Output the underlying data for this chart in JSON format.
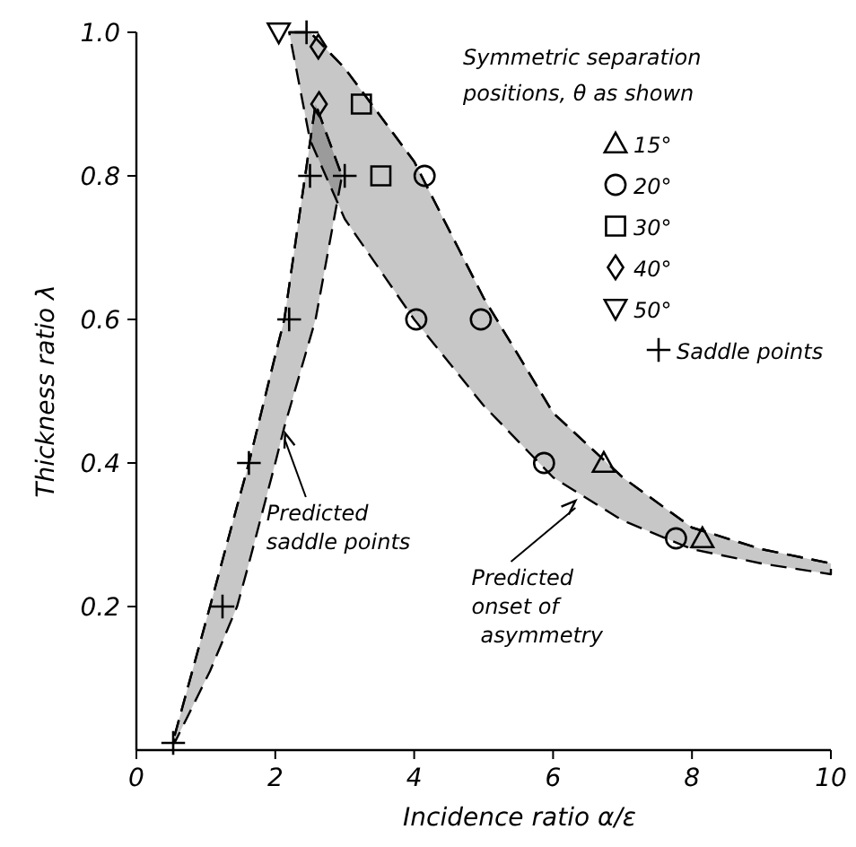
{
  "chart_data": {
    "type": "scatter",
    "xlabel": "Incidence ratio  α/ε",
    "ylabel": "Thickness ratio  λ",
    "legend_title": "Symmetric separation positions, θ as shown",
    "xlim": [
      0,
      10
    ],
    "ylim": [
      0,
      1
    ],
    "xticks": [
      0,
      2,
      4,
      6,
      8,
      10
    ],
    "yticks": [
      0.2,
      0.4,
      0.6,
      {
        "value": 0.8,
        "label": "0.8"
      },
      {
        "value": 1,
        "label": "1.0"
      }
    ],
    "grid": false,
    "legend": "top right",
    "series": [
      {
        "type": "line",
        "color": "#000000",
        "line_style": "dashed",
        "x": [
          0.55,
          1.06,
          1.45,
          1.62,
          2.0,
          2.13,
          2.43,
          2.58,
          2.96
        ],
        "values": [
          0.02,
          0.2,
          0.34,
          0.4,
          0.55,
          0.6,
          0.8,
          0.9,
          0.8
        ],
        "upper": [
          0.02,
          0.2,
          0.34,
          0.4,
          0.55,
          0.6,
          0.8,
          0.9,
          0.8
        ],
        "lower": [
          0.01,
          0.11,
          0.2,
          0.26,
          0.4,
          0.45,
          0.55,
          0.6,
          0.8
        ]
      },
      {
        "type": "line",
        "color": "#000000",
        "line_style": "dashed",
        "x": [
          2.2,
          2.5,
          3,
          4,
          5,
          6,
          7,
          8,
          9,
          10
        ],
        "values": [
          1.0,
          1.0,
          0.95,
          0.82,
          0.63,
          0.47,
          0.38,
          0.31,
          0.28,
          0.26
        ],
        "upper": [
          1.0,
          1.0,
          0.95,
          0.82,
          0.63,
          0.47,
          0.38,
          0.31,
          0.28,
          0.26
        ],
        "lower": [
          1.0,
          0.85,
          0.74,
          0.6,
          0.48,
          0.38,
          0.32,
          0.28,
          0.26,
          0.245
        ]
      },
      {
        "name": "15°",
        "marker": "triangle",
        "color": "#000000",
        "x": [
          6.73,
          8.15
        ],
        "values": [
          0.4,
          0.295
        ]
      },
      {
        "name": "20°",
        "marker": "circle",
        "color": "#000000",
        "x": [
          4.15,
          4.03,
          4.96,
          5.87,
          7.77
        ],
        "values": [
          0.8,
          0.6,
          0.6,
          0.4,
          0.295
        ]
      },
      {
        "name": "30°",
        "marker": "square",
        "color": "#000000",
        "x": [
          3.24,
          3.52
        ],
        "values": [
          0.9,
          0.8
        ]
      },
      {
        "name": "40°",
        "marker": "diamond",
        "color": "#000000",
        "x": [
          2.62,
          2.63
        ],
        "values": [
          0.98,
          0.9
        ]
      },
      {
        "name": "50°",
        "marker": "triangle-down",
        "color": "#000000",
        "x": [
          2.05
        ],
        "values": [
          1.0
        ]
      },
      {
        "name": "Saddle points",
        "marker": "cross",
        "color": "#000000",
        "x": [
          0.53,
          1.24,
          1.62,
          2.2,
          2.5,
          3.0,
          2.45
        ],
        "values": [
          0.01,
          0.2,
          0.4,
          0.6,
          0.8,
          0.8,
          1.0
        ]
      }
    ],
    "annotations": [
      {
        "text": "Predicted saddle points",
        "x": 2.13,
        "y": 0.445
      },
      {
        "text": "Predicted onset of asymmetry",
        "x": 6.35,
        "y": 0.35
      }
    ]
  }
}
